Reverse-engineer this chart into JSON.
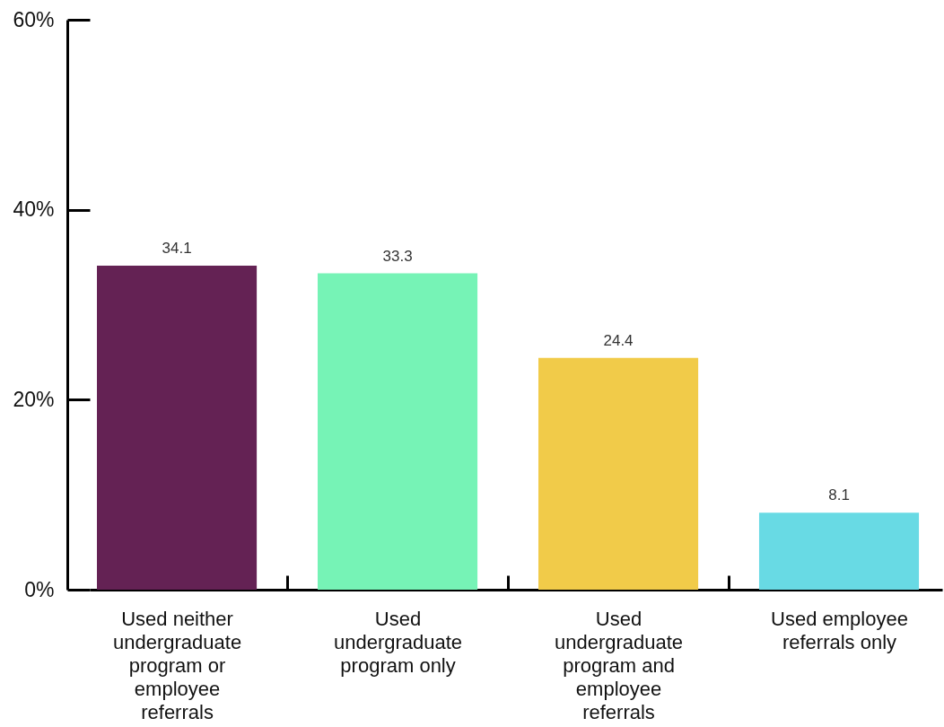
{
  "chart_data": {
    "type": "bar",
    "categories": [
      "Used neither undergraduate program or employee referrals",
      "Used undergraduate program only",
      "Used undergraduate program and employee referrals",
      "Used employee referrals only"
    ],
    "values": [
      34.1,
      33.3,
      24.4,
      8.1
    ],
    "colors": [
      "#642254",
      "#76f3b6",
      "#f1cb49",
      "#68dae4"
    ],
    "ylim": [
      0,
      60
    ],
    "yticks": [
      {
        "value": 0,
        "label": "0%"
      },
      {
        "value": 20,
        "label": "20%"
      },
      {
        "value": 40,
        "label": "40%"
      },
      {
        "value": 60,
        "label": "60%"
      }
    ],
    "data_labels": true
  }
}
